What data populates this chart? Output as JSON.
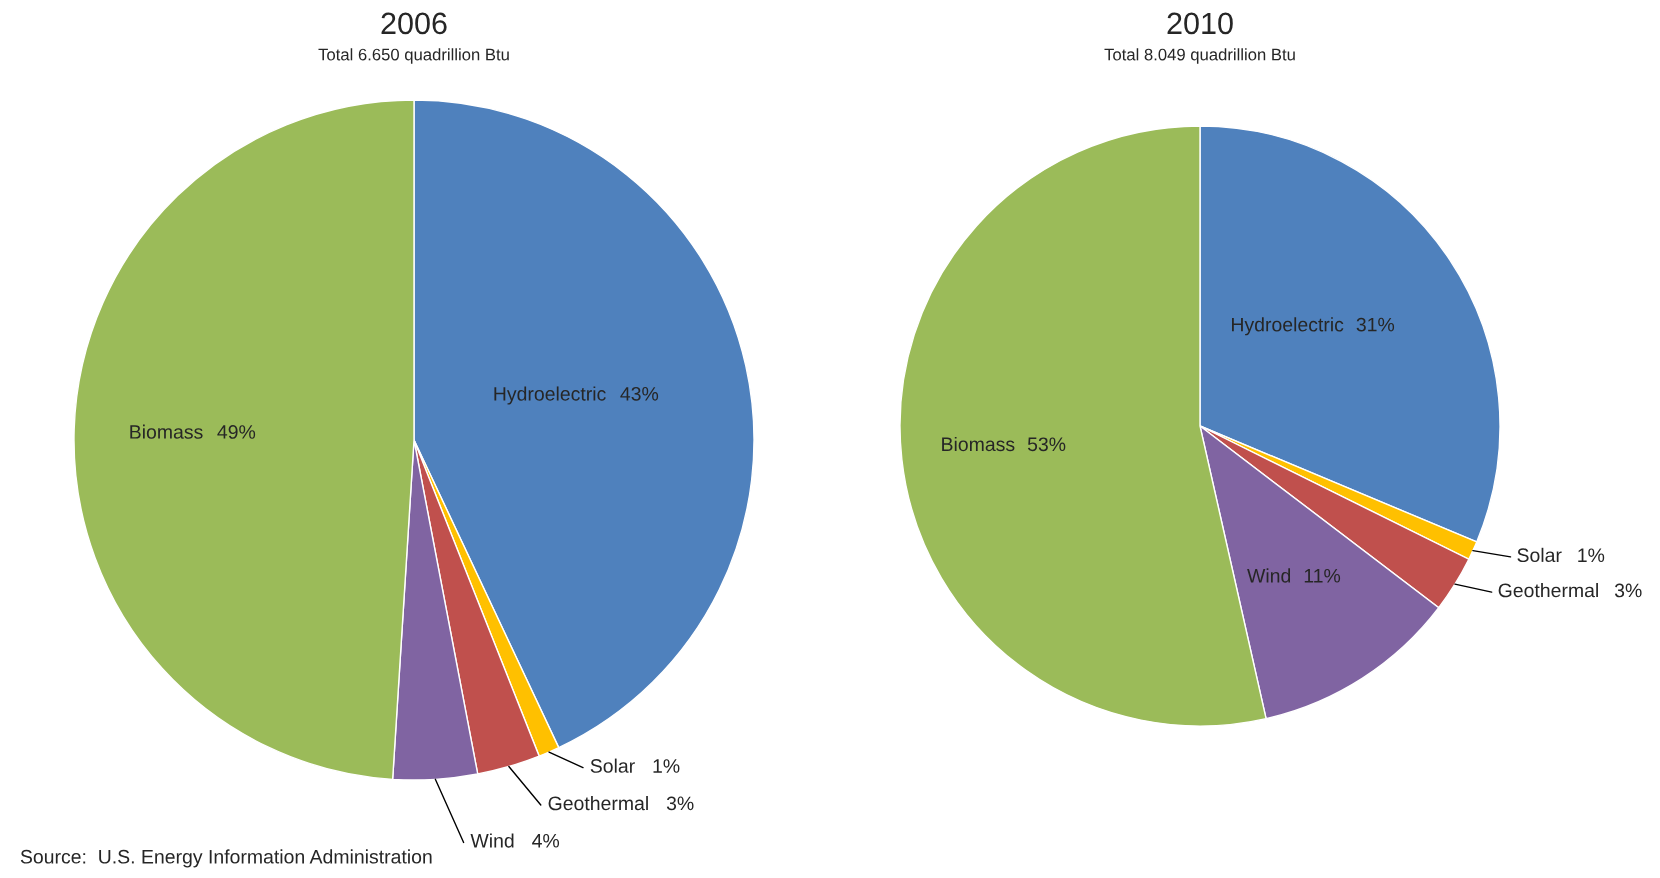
{
  "chart_data": [
    {
      "type": "pie",
      "title": "2006",
      "subtitle": "Total 6.650 quadrillion Btu",
      "categories": [
        "Hydroelectric",
        "Solar",
        "Geothermal",
        "Wind",
        "Biomass"
      ],
      "values": [
        43,
        1,
        3,
        4,
        49
      ],
      "value_labels": [
        "43%",
        "1%",
        "3%",
        "4%",
        "49%"
      ],
      "colors": [
        "#4f81bd",
        "#ffc000",
        "#c0504d",
        "#8064a2",
        "#9bbb59"
      ],
      "annotations": [
        "Source:  U.S. Energy Information Administration"
      ]
    },
    {
      "type": "pie",
      "title": "2010",
      "subtitle": "Total 8.049 quadrillion Btu",
      "categories": [
        "Hydroelectric",
        "Solar",
        "Geothermal",
        "Wind",
        "Biomass"
      ],
      "values": [
        31,
        1,
        3,
        11,
        53
      ],
      "value_labels": [
        "31%",
        "1%",
        "3%",
        "11%",
        "53%"
      ],
      "colors": [
        "#4f81bd",
        "#ffc000",
        "#c0504d",
        "#8064a2",
        "#9bbb59"
      ]
    }
  ]
}
